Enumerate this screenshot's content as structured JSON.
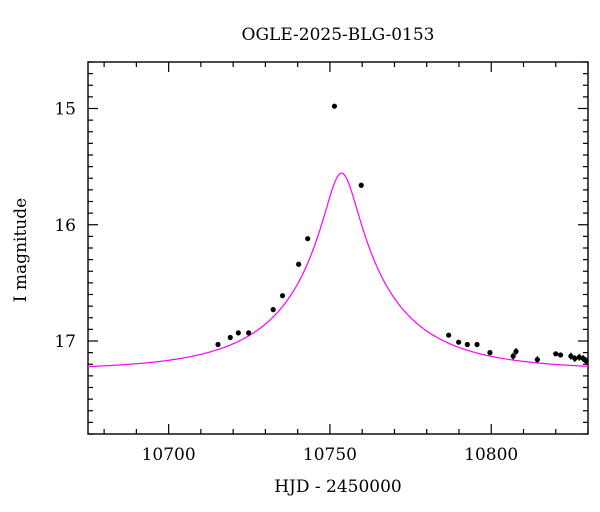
{
  "chart_data": {
    "type": "scatter",
    "title": "OGLE-2025-BLG-0153",
    "xlabel": "HJD - 2450000",
    "ylabel": "I magnitude",
    "xlim": [
      10675,
      10830
    ],
    "ylim": [
      17.8,
      14.6
    ],
    "y_inverted": true,
    "x_ticks_major": [
      10700,
      10750,
      10800
    ],
    "x_tick_labels": [
      "10700",
      "10750",
      "10800"
    ],
    "y_ticks_major": [
      15,
      16,
      17
    ],
    "y_tick_labels": [
      "15",
      "16",
      "17"
    ],
    "grid": false,
    "colors": {
      "model": "#ff00ff",
      "points": "#000000",
      "axes": "#000000"
    },
    "series": [
      {
        "kind": "points",
        "x": [
          10715.3,
          10719.1,
          10721.6,
          10724.8,
          10732.4,
          10735.3,
          10740.3,
          10743.1,
          10751.4,
          10759.7,
          10786.8,
          10789.9,
          10792.6,
          10795.6,
          10799.6,
          10806.8,
          10807.7,
          10814.3,
          10820.0,
          10821.5,
          10824.7,
          10825.9,
          10827.3,
          10828.5,
          10829.4
        ],
        "y": [
          17.03,
          16.97,
          16.93,
          16.93,
          16.73,
          16.61,
          16.34,
          16.12,
          14.98,
          15.66,
          16.95,
          17.01,
          17.03,
          17.03,
          17.1,
          17.13,
          17.09,
          17.16,
          17.11,
          17.12,
          17.13,
          17.15,
          17.14,
          17.15,
          17.17
        ],
        "yerr": [
          0.02,
          0.02,
          0.02,
          0.02,
          0.02,
          0.02,
          0.02,
          0.02,
          0.02,
          0.02,
          0.02,
          0.02,
          0.02,
          0.02,
          0.02,
          0.03,
          0.03,
          0.03,
          0.02,
          0.02,
          0.03,
          0.03,
          0.03,
          0.03,
          0.03
        ]
      },
      {
        "kind": "model",
        "model_params": {
          "t0": 10753.6,
          "u0": 0.1385,
          "tE": 36.0,
          "baseline_mag": 17.25,
          "source_flux_fraction": 0.6
        }
      }
    ]
  }
}
